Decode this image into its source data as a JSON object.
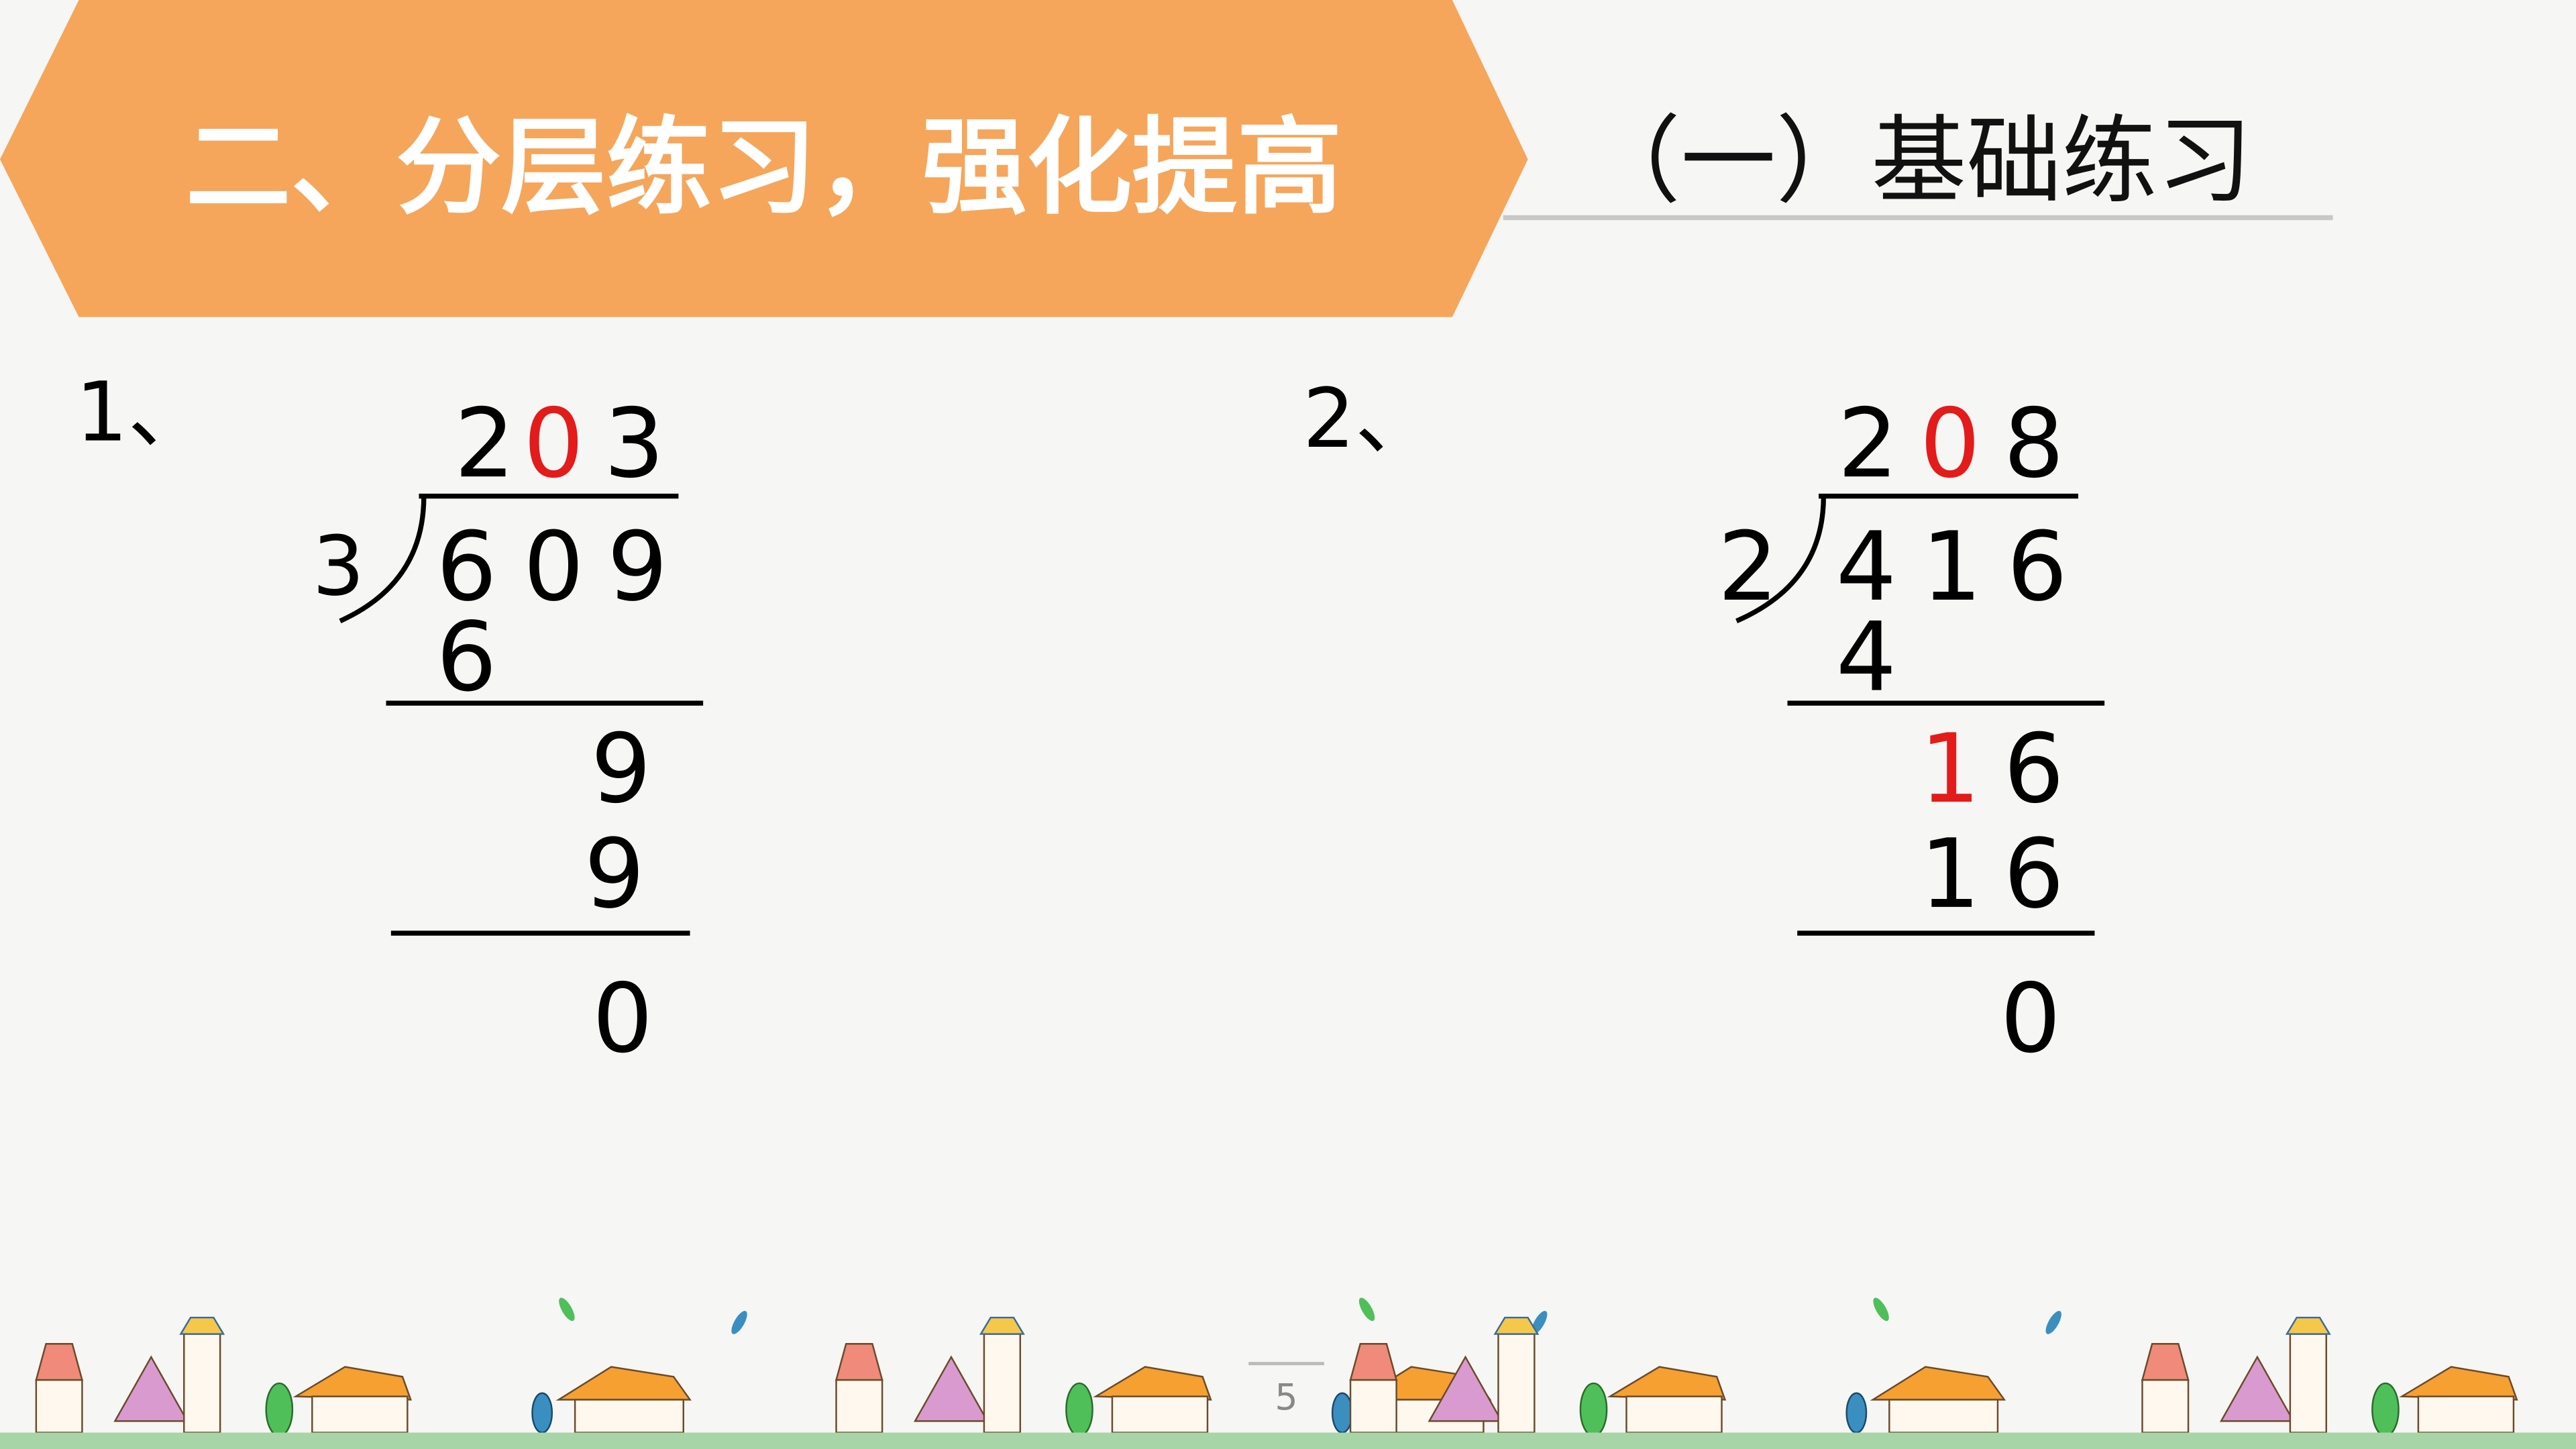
{
  "header": {
    "section_title": "二、分层练习，强化提高",
    "subtitle": "（一）基础练习",
    "banner_color": "#F5A65B"
  },
  "problems": [
    {
      "label": "1、",
      "divisor": "3",
      "quotient": [
        "2",
        "0",
        "3"
      ],
      "dividend": [
        "6",
        "0",
        "9"
      ],
      "step1": [
        "6"
      ],
      "step2": [
        "9"
      ],
      "step3": [
        "9"
      ],
      "remainder": "0",
      "highlight": "quotient digit 0"
    },
    {
      "label": "2、",
      "divisor": "2",
      "quotient": [
        "2",
        "0",
        "8"
      ],
      "dividend": [
        "4",
        "1",
        "6"
      ],
      "step1": [
        "4"
      ],
      "step2": [
        "1",
        "6"
      ],
      "step3": [
        "1",
        "6"
      ],
      "remainder": "0"
    }
  ],
  "highlight_color": "#E31B1B",
  "footer": {
    "page_number": "5",
    "ground_color": "#A8D5A8"
  }
}
